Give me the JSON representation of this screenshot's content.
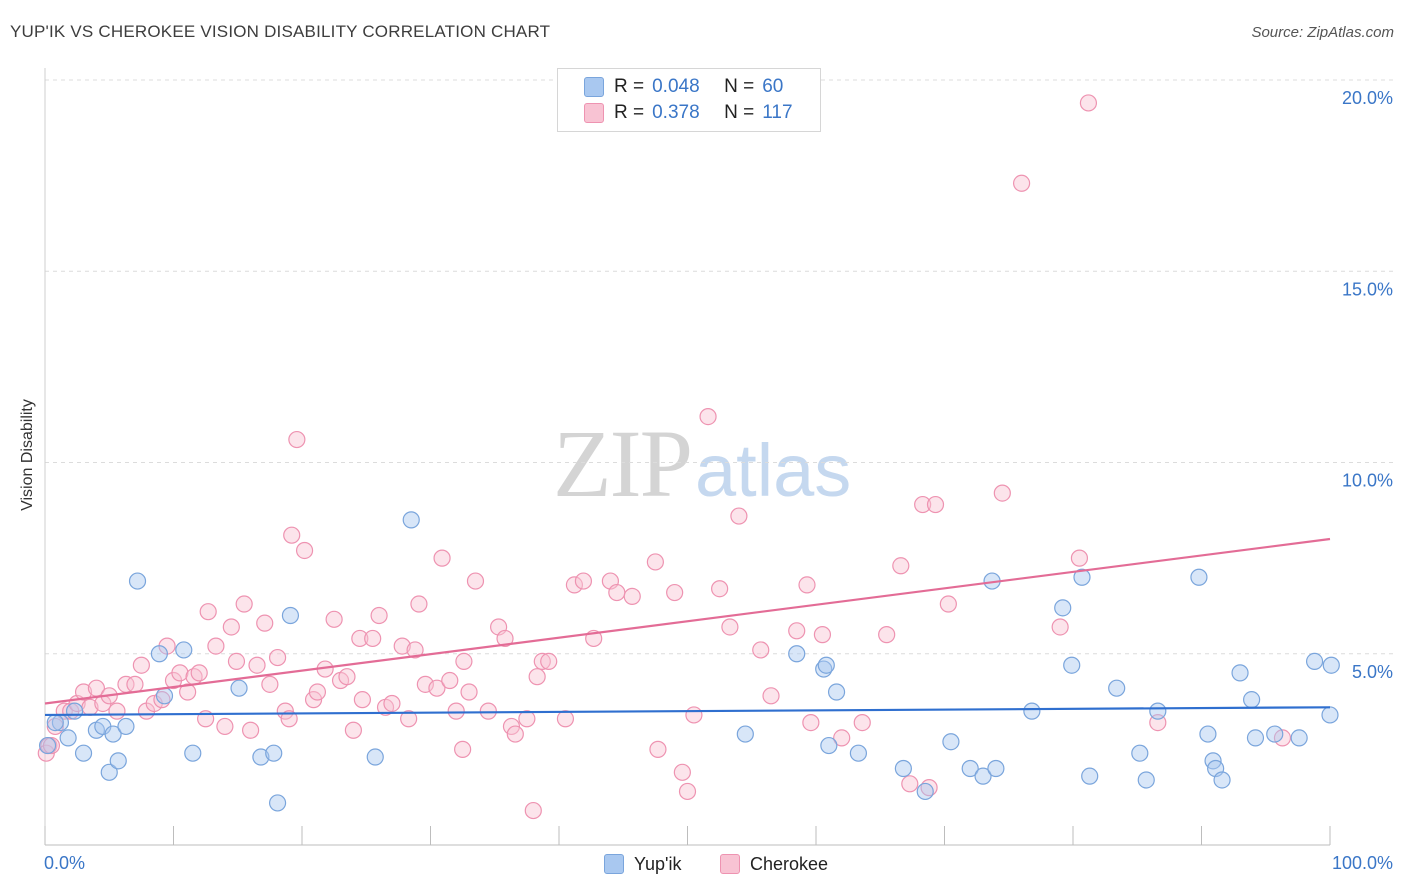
{
  "title": "YUP'IK VS CHEROKEE VISION DISABILITY CORRELATION CHART",
  "source": "Source: ZipAtlas.com",
  "watermark": {
    "zip": "ZIP",
    "atlas": "atlas"
  },
  "legend": {
    "r_label": "R = ",
    "n_label": "N = ",
    "rows": [
      {
        "r": "0.048",
        "n": "60",
        "fill": "#a9c8f0",
        "stroke": "#7aa5dc"
      },
      {
        "r": "0.378",
        "n": "117",
        "fill": "#f8c3d3",
        "stroke": "#ee93b1"
      }
    ]
  },
  "bottom_legend": [
    {
      "name": "Yup'ik",
      "fill": "#a9c8f0",
      "stroke": "#7aa5dc"
    },
    {
      "name": "Cherokee",
      "fill": "#f8c3d3",
      "stroke": "#ee93b1"
    }
  ],
  "chart_data": {
    "type": "scatter",
    "title": "YUP'IK VS CHEROKEE VISION DISABILITY CORRELATION CHART",
    "xlabel": "",
    "ylabel": "Vision Disability",
    "xlim": [
      0,
      100
    ],
    "ylim": [
      0,
      20
    ],
    "x_tick_labels": [
      "0.0%",
      "100.0%"
    ],
    "y_ticks": [
      5,
      10,
      15,
      20
    ],
    "y_tick_labels": [
      "5.0%",
      "10.0%",
      "15.0%",
      "20.0%"
    ],
    "grid": true,
    "legend_position": "top-center",
    "series": [
      {
        "name": "Yup'ik",
        "color": "#7aa5dc",
        "trend_color": "#2f6fcf",
        "trend": {
          "x": [
            0,
            100
          ],
          "y": [
            3.4,
            3.6
          ]
        },
        "points": [
          [
            0.2,
            2.6
          ],
          [
            1.2,
            3.2
          ],
          [
            1.8,
            2.8
          ],
          [
            2.3,
            3.5
          ],
          [
            3.0,
            2.4
          ],
          [
            4.0,
            3.0
          ],
          [
            4.5,
            3.1
          ],
          [
            5.0,
            1.9
          ],
          [
            5.3,
            2.9
          ],
          [
            5.7,
            2.2
          ],
          [
            6.3,
            3.1
          ],
          [
            7.2,
            6.9
          ],
          [
            8.9,
            5.0
          ],
          [
            9.3,
            3.9
          ],
          [
            10.8,
            5.1
          ],
          [
            11.5,
            2.4
          ],
          [
            15.1,
            4.1
          ],
          [
            16.8,
            2.3
          ],
          [
            17.8,
            2.4
          ],
          [
            18.1,
            1.1
          ],
          [
            19.1,
            6.0
          ],
          [
            25.7,
            2.3
          ],
          [
            28.5,
            8.5
          ],
          [
            54.5,
            2.9
          ],
          [
            58.5,
            5.0
          ],
          [
            60.6,
            4.6
          ],
          [
            60.8,
            4.7
          ],
          [
            61.0,
            2.6
          ],
          [
            61.6,
            4.0
          ],
          [
            63.3,
            2.4
          ],
          [
            66.8,
            2.0
          ],
          [
            68.5,
            1.4
          ],
          [
            70.5,
            2.7
          ],
          [
            72.0,
            2.0
          ],
          [
            73.0,
            1.8
          ],
          [
            73.7,
            6.9
          ],
          [
            74.0,
            2.0
          ],
          [
            76.8,
            3.5
          ],
          [
            79.2,
            6.2
          ],
          [
            79.9,
            4.7
          ],
          [
            80.7,
            7.0
          ],
          [
            81.3,
            1.8
          ],
          [
            83.4,
            4.1
          ],
          [
            85.2,
            2.4
          ],
          [
            85.7,
            1.7
          ],
          [
            86.6,
            3.5
          ],
          [
            89.8,
            7.0
          ],
          [
            90.5,
            2.9
          ],
          [
            90.9,
            2.2
          ],
          [
            91.1,
            2.0
          ],
          [
            91.6,
            1.7
          ],
          [
            93.0,
            4.5
          ],
          [
            93.9,
            3.8
          ],
          [
            94.2,
            2.8
          ],
          [
            95.7,
            2.9
          ],
          [
            97.6,
            2.8
          ],
          [
            98.8,
            4.8
          ],
          [
            100.0,
            3.4
          ],
          [
            100.1,
            4.7
          ],
          [
            0.8,
            3.2
          ]
        ]
      },
      {
        "name": "Cherokee",
        "color": "#ee93b1",
        "trend_color": "#e36c96",
        "trend": {
          "x": [
            0,
            100
          ],
          "y": [
            3.7,
            8.0
          ]
        },
        "points": [
          [
            0.3,
            2.6
          ],
          [
            0.8,
            3.1
          ],
          [
            1.5,
            3.5
          ],
          [
            2.0,
            3.5
          ],
          [
            2.5,
            3.7
          ],
          [
            3.0,
            4.0
          ],
          [
            3.5,
            3.6
          ],
          [
            4.0,
            4.1
          ],
          [
            4.5,
            3.7
          ],
          [
            5.0,
            3.9
          ],
          [
            5.6,
            3.5
          ],
          [
            6.3,
            4.2
          ],
          [
            7.0,
            4.2
          ],
          [
            7.5,
            4.7
          ],
          [
            7.9,
            3.5
          ],
          [
            8.5,
            3.7
          ],
          [
            9.1,
            3.8
          ],
          [
            9.5,
            5.2
          ],
          [
            10.0,
            4.3
          ],
          [
            10.5,
            4.5
          ],
          [
            11.1,
            4.0
          ],
          [
            11.6,
            4.4
          ],
          [
            12.0,
            4.5
          ],
          [
            12.5,
            3.3
          ],
          [
            12.7,
            6.1
          ],
          [
            13.3,
            5.2
          ],
          [
            14.0,
            3.1
          ],
          [
            14.5,
            5.7
          ],
          [
            14.9,
            4.8
          ],
          [
            15.5,
            6.3
          ],
          [
            16.0,
            3.0
          ],
          [
            16.5,
            4.7
          ],
          [
            17.1,
            5.8
          ],
          [
            17.5,
            4.2
          ],
          [
            18.1,
            4.9
          ],
          [
            18.7,
            3.5
          ],
          [
            19.0,
            3.3
          ],
          [
            19.2,
            8.1
          ],
          [
            19.6,
            10.6
          ],
          [
            20.2,
            7.7
          ],
          [
            20.9,
            3.8
          ],
          [
            21.2,
            4.0
          ],
          [
            21.8,
            4.6
          ],
          [
            22.5,
            5.9
          ],
          [
            23.0,
            4.3
          ],
          [
            23.5,
            4.4
          ],
          [
            24.0,
            3.0
          ],
          [
            24.5,
            5.4
          ],
          [
            24.7,
            3.8
          ],
          [
            25.5,
            5.4
          ],
          [
            26.0,
            6.0
          ],
          [
            26.5,
            3.6
          ],
          [
            27.0,
            3.7
          ],
          [
            27.8,
            5.2
          ],
          [
            28.3,
            3.3
          ],
          [
            28.8,
            5.1
          ],
          [
            29.1,
            6.3
          ],
          [
            29.6,
            4.2
          ],
          [
            30.5,
            4.1
          ],
          [
            30.9,
            7.5
          ],
          [
            31.5,
            4.3
          ],
          [
            32.0,
            3.5
          ],
          [
            32.5,
            2.5
          ],
          [
            32.6,
            4.8
          ],
          [
            33.0,
            4.0
          ],
          [
            33.5,
            6.9
          ],
          [
            34.5,
            3.5
          ],
          [
            35.3,
            5.7
          ],
          [
            35.8,
            5.4
          ],
          [
            36.3,
            3.1
          ],
          [
            36.6,
            2.9
          ],
          [
            37.5,
            3.3
          ],
          [
            38.0,
            0.9
          ],
          [
            38.3,
            4.4
          ],
          [
            38.7,
            4.8
          ],
          [
            39.2,
            4.8
          ],
          [
            40.5,
            3.3
          ],
          [
            41.2,
            6.8
          ],
          [
            41.9,
            6.9
          ],
          [
            42.7,
            5.4
          ],
          [
            44.0,
            6.9
          ],
          [
            44.5,
            6.6
          ],
          [
            45.7,
            6.5
          ],
          [
            47.5,
            7.4
          ],
          [
            47.7,
            2.5
          ],
          [
            49.0,
            6.6
          ],
          [
            49.6,
            1.9
          ],
          [
            50.0,
            1.4
          ],
          [
            50.5,
            3.4
          ],
          [
            51.6,
            11.2
          ],
          [
            52.5,
            6.7
          ],
          [
            53.3,
            5.7
          ],
          [
            54.0,
            8.6
          ],
          [
            55.7,
            5.1
          ],
          [
            56.5,
            3.9
          ],
          [
            58.5,
            5.6
          ],
          [
            59.3,
            6.8
          ],
          [
            59.6,
            3.2
          ],
          [
            60.5,
            5.5
          ],
          [
            62.0,
            2.8
          ],
          [
            63.6,
            3.2
          ],
          [
            65.5,
            5.5
          ],
          [
            66.6,
            7.3
          ],
          [
            67.3,
            1.6
          ],
          [
            68.3,
            8.9
          ],
          [
            68.8,
            1.5
          ],
          [
            69.3,
            8.9
          ],
          [
            70.3,
            6.3
          ],
          [
            74.5,
            9.2
          ],
          [
            76.0,
            17.3
          ],
          [
            79.0,
            5.7
          ],
          [
            80.5,
            7.5
          ],
          [
            81.2,
            19.4
          ],
          [
            86.6,
            3.2
          ],
          [
            96.3,
            2.8
          ],
          [
            0.1,
            2.4
          ],
          [
            0.5,
            2.6
          ]
        ]
      }
    ]
  }
}
